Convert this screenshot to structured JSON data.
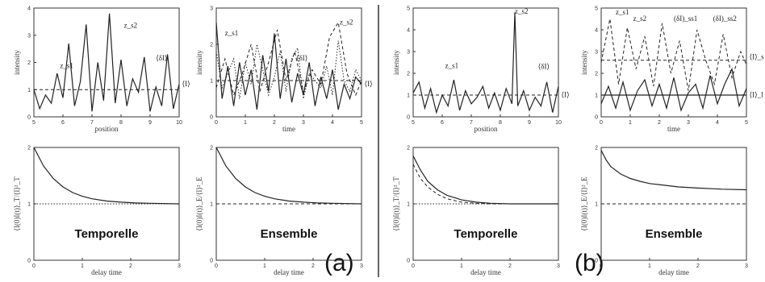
{
  "divider_color": "#333333",
  "panel_letters": [
    "(a)",
    "(b)"
  ],
  "chart_data": [
    {
      "type": "line",
      "id": "a-top-left",
      "xlabel": "position",
      "ylabel": "intensity",
      "xlim": [
        5,
        10
      ],
      "ylim": [
        0,
        4
      ],
      "xticks": [
        "5",
        "6",
        "7",
        "8",
        "9",
        "10"
      ],
      "yticks": [
        "0",
        "1",
        "2",
        "3",
        "4"
      ],
      "annotations": [
        "z_s1",
        "z_s2",
        "⟨δI⟩",
        "⟨I⟩"
      ],
      "series": [
        {
          "style": "solid",
          "x": [
            5,
            5.2,
            5.4,
            5.6,
            5.8,
            6,
            6.2,
            6.4,
            6.6,
            6.8,
            7,
            7.2,
            7.4,
            7.6,
            7.8,
            8,
            8.2,
            8.4,
            8.6,
            8.8,
            9,
            9.2,
            9.4,
            9.6,
            9.8,
            10
          ],
          "y": [
            1,
            0.3,
            0.8,
            0.5,
            1.6,
            0.7,
            2.7,
            0.4,
            1.3,
            3.4,
            0.2,
            2.0,
            0.6,
            3.8,
            0.5,
            2.1,
            0.4,
            1.4,
            0.9,
            2.2,
            0.2,
            1.1,
            0.4,
            2.3,
            0.3,
            1.2
          ]
        },
        {
          "style": "dashed",
          "x": [
            5,
            10
          ],
          "y": [
            1,
            1
          ]
        }
      ]
    },
    {
      "type": "line",
      "id": "a-top-right",
      "xlabel": "time",
      "ylabel": "intensity",
      "xlim": [
        0,
        5
      ],
      "ylim": [
        0,
        3
      ],
      "xticks": [
        "0",
        "1",
        "2",
        "3",
        "4",
        "5"
      ],
      "yticks": [
        "0",
        "1",
        "2",
        "3"
      ],
      "annotations": [
        "z_s1",
        "z_s2",
        "⟨δI⟩",
        "⟨I⟩"
      ],
      "series": [
        {
          "style": "solid",
          "x": [
            0,
            0.2,
            0.4,
            0.6,
            0.8,
            1,
            1.2,
            1.4,
            1.6,
            1.8,
            2,
            2.2,
            2.4,
            2.6,
            2.8,
            3,
            3.2,
            3.4,
            3.6,
            3.8,
            4,
            4.2,
            4.4,
            4.6,
            4.8,
            5
          ],
          "y": [
            2.6,
            0.5,
            1.4,
            0.3,
            1.5,
            0.6,
            1.3,
            0.2,
            1.7,
            0.7,
            2.3,
            0.5,
            1.6,
            0.4,
            1.2,
            0.6,
            1.5,
            0.3,
            1.1,
            0.5,
            1.3,
            0.2,
            0.9,
            0.5,
            1.1,
            0.9
          ]
        },
        {
          "style": "dotted",
          "x": [
            0,
            0.2,
            0.4,
            0.6,
            0.8,
            1,
            1.2,
            1.4,
            1.6,
            1.8,
            2,
            2.2,
            2.4,
            2.6,
            2.8,
            3,
            3.2,
            3.4,
            3.6,
            3.8,
            4,
            4.2,
            4.4,
            4.6,
            4.8,
            5
          ],
          "y": [
            1.8,
            0.8,
            1.2,
            1.6,
            0.5,
            1.5,
            0.9,
            2.0,
            1.3,
            0.6,
            1.1,
            1.8,
            0.7,
            1.6,
            1.9,
            0.5,
            1.2,
            1.0,
            0.8,
            1.4,
            0.6,
            2.1,
            1.0,
            0.7,
            1.3,
            1.0
          ]
        },
        {
          "style": "dashed",
          "x": [
            0,
            0.3,
            0.6,
            0.9,
            1.2,
            1.5,
            1.8,
            2.1,
            2.4,
            2.7,
            3,
            3.3,
            3.6,
            3.9,
            4.2,
            4.5,
            4.8,
            5
          ],
          "y": [
            0.8,
            1.6,
            0.6,
            1.2,
            2.0,
            0.7,
            1.5,
            2.4,
            1.0,
            1.8,
            0.7,
            1.3,
            0.9,
            2.2,
            2.6,
            1.2,
            0.6,
            1.0
          ]
        },
        {
          "style": "dashed",
          "x": [
            0,
            5
          ],
          "y": [
            1,
            1
          ]
        }
      ]
    },
    {
      "type": "line",
      "id": "a-bottom-left",
      "xlabel": "delay time",
      "ylabel": "⟨I(0)I(t)⟩_T/⟨I⟩²_T",
      "xlim": [
        0,
        3
      ],
      "ylim": [
        0,
        2
      ],
      "xticks": [
        "0",
        "1",
        "2",
        "3"
      ],
      "yticks": [
        "0",
        "1",
        "2"
      ],
      "label": "Temporelle",
      "series": [
        {
          "style": "solid",
          "x": [
            0,
            0.2,
            0.4,
            0.6,
            0.8,
            1,
            1.2,
            1.5,
            1.8,
            2.1,
            2.4,
            3
          ],
          "y": [
            2,
            1.67,
            1.45,
            1.3,
            1.2,
            1.135,
            1.09,
            1.05,
            1.03,
            1.015,
            1.01,
            1
          ]
        },
        {
          "style": "dotted",
          "x": [
            0,
            3
          ],
          "y": [
            1,
            1
          ]
        }
      ]
    },
    {
      "type": "line",
      "id": "a-bottom-right",
      "xlabel": "delay time",
      "ylabel": "⟨I(0)I(t)⟩_E/⟨I⟩²_E",
      "xlim": [
        0,
        3
      ],
      "ylim": [
        0,
        2
      ],
      "xticks": [
        "0",
        "1",
        "2",
        "3"
      ],
      "yticks": [
        "0",
        "1",
        "2"
      ],
      "label": "Ensemble",
      "series": [
        {
          "style": "solid",
          "x": [
            0,
            0.2,
            0.4,
            0.6,
            0.8,
            1,
            1.2,
            1.5,
            1.8,
            2.1,
            2.4,
            3
          ],
          "y": [
            2,
            1.67,
            1.45,
            1.3,
            1.2,
            1.135,
            1.09,
            1.05,
            1.03,
            1.015,
            1.01,
            1
          ]
        },
        {
          "style": "dashed",
          "x": [
            0,
            3
          ],
          "y": [
            1,
            1
          ]
        }
      ]
    },
    {
      "type": "line",
      "id": "b-top-left",
      "xlabel": "position",
      "ylabel": "intensity",
      "xlim": [
        5,
        10
      ],
      "ylim": [
        0,
        5
      ],
      "xticks": [
        "5",
        "6",
        "7",
        "8",
        "9",
        "10"
      ],
      "yticks": [
        "0",
        "1",
        "2",
        "3",
        "4",
        "5"
      ],
      "annotations": [
        "z_s1",
        "z_s2",
        "⟨δI⟩",
        "⟨I⟩"
      ],
      "series": [
        {
          "style": "solid",
          "x": [
            5,
            5.2,
            5.4,
            5.6,
            5.8,
            6,
            6.2,
            6.4,
            6.6,
            6.8,
            7,
            7.2,
            7.4,
            7.6,
            7.8,
            8,
            8.2,
            8.4,
            8.5,
            8.6,
            8.8,
            9,
            9.2,
            9.4,
            9.6,
            9.8,
            10
          ],
          "y": [
            1.1,
            1.6,
            0.4,
            1.3,
            0.2,
            1.0,
            0.5,
            1.7,
            0.3,
            1.2,
            0.6,
            0.9,
            1.4,
            0.4,
            1.1,
            0.3,
            1.3,
            0.6,
            4.8,
            0.5,
            1.2,
            0.3,
            0.9,
            0.5,
            1.6,
            0.2,
            1.4
          ]
        },
        {
          "style": "dashed",
          "x": [
            5,
            10
          ],
          "y": [
            1,
            1
          ]
        }
      ]
    },
    {
      "type": "line",
      "id": "b-top-right",
      "xlabel": "time",
      "ylabel": "intensity",
      "xlim": [
        0,
        5
      ],
      "ylim": [
        0,
        5
      ],
      "xticks": [
        "0",
        "1",
        "2",
        "3",
        "4",
        "5"
      ],
      "yticks": [
        "0",
        "1",
        "2",
        "3",
        "4",
        "5"
      ],
      "annotations": [
        "z_s1",
        "z_s2",
        "(δI)_ss1",
        "(δI)_ss2",
        "⟨I⟩_s",
        "⟨I⟩_l"
      ],
      "series": [
        {
          "style": "solid",
          "x": [
            0,
            0.25,
            0.5,
            0.75,
            1,
            1.25,
            1.5,
            1.75,
            2,
            2.25,
            2.5,
            2.75,
            3,
            3.25,
            3.5,
            3.75,
            4,
            4.25,
            4.5,
            4.75,
            5
          ],
          "y": [
            0.6,
            1.4,
            0.4,
            1.6,
            0.3,
            1.2,
            1.7,
            0.5,
            1.5,
            0.4,
            1.8,
            0.3,
            1.1,
            1.5,
            0.4,
            1.9,
            0.6,
            1.5,
            2.2,
            0.5,
            1.3
          ]
        },
        {
          "style": "dashed",
          "x": [
            0,
            0.3,
            0.6,
            0.9,
            1.2,
            1.5,
            1.8,
            2.1,
            2.4,
            2.7,
            3,
            3.3,
            3.6,
            3.9,
            4.2,
            4.5,
            4.8,
            5
          ],
          "y": [
            2.5,
            4.5,
            1.5,
            4.1,
            2.2,
            3.7,
            1.4,
            4.3,
            2.0,
            3.5,
            1.2,
            4.0,
            2.6,
            1.5,
            3.8,
            1.8,
            3.0,
            2.4
          ]
        },
        {
          "style": "dashed",
          "x": [
            0,
            5
          ],
          "y": [
            2.6,
            2.6
          ]
        },
        {
          "style": "solid",
          "x": [
            0,
            5
          ],
          "y": [
            1,
            1
          ]
        }
      ]
    },
    {
      "type": "line",
      "id": "b-bottom-left",
      "xlabel": "delay time",
      "ylabel": "⟨I(0)I(t)⟩_T/⟨I⟩²_T",
      "xlim": [
        0,
        3
      ],
      "ylim": [
        0,
        2
      ],
      "xticks": [
        "0",
        "1",
        "2",
        "3"
      ],
      "yticks": [
        "0",
        "1",
        "2"
      ],
      "label": "Temporelle",
      "series": [
        {
          "style": "solid",
          "x": [
            0,
            0.15,
            0.3,
            0.5,
            0.7,
            1,
            1.3,
            1.6,
            2,
            2.5,
            3
          ],
          "y": [
            1.85,
            1.6,
            1.4,
            1.25,
            1.15,
            1.07,
            1.03,
            1.01,
            1.0,
            1.0,
            1.0
          ]
        },
        {
          "style": "dashed",
          "x": [
            0,
            0.15,
            0.3,
            0.5,
            0.7,
            1,
            1.3,
            1.6,
            2,
            2.5,
            3
          ],
          "y": [
            1.7,
            1.45,
            1.3,
            1.17,
            1.09,
            1.03,
            1.01,
            1.0,
            1.0,
            1.0,
            1.0
          ]
        },
        {
          "style": "dotted",
          "x": [
            0,
            3
          ],
          "y": [
            1,
            1
          ]
        }
      ]
    },
    {
      "type": "line",
      "id": "b-bottom-right",
      "xlabel": "delay time",
      "ylabel": "⟨I(0)I(t)⟩_E/⟨I⟩²_E",
      "xlim": [
        0,
        3
      ],
      "ylim": [
        0,
        2
      ],
      "xticks": [
        "0",
        "1",
        "2",
        "3"
      ],
      "yticks": [
        "0",
        "1",
        "2"
      ],
      "label": "Ensemble",
      "series": [
        {
          "style": "solid",
          "x": [
            0,
            0.1,
            0.2,
            0.4,
            0.6,
            0.8,
            1,
            1.3,
            1.6,
            2,
            2.5,
            3
          ],
          "y": [
            1.95,
            1.78,
            1.66,
            1.53,
            1.45,
            1.4,
            1.36,
            1.33,
            1.3,
            1.28,
            1.26,
            1.25
          ]
        },
        {
          "style": "dashed",
          "x": [
            0,
            3
          ],
          "y": [
            1,
            1
          ]
        }
      ]
    }
  ]
}
